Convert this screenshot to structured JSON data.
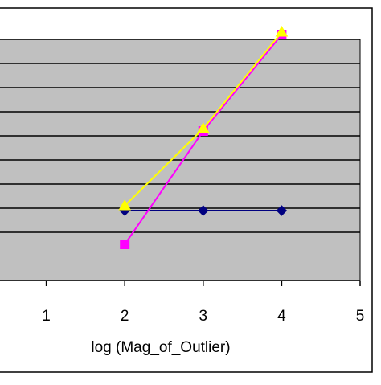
{
  "chart_data": {
    "type": "line",
    "title": "",
    "xlabel": "log (Mag_of_Outlier)",
    "ylabel": "",
    "xlim": [
      0,
      5
    ],
    "ylim": [
      0,
      6
    ],
    "x_ticks": [
      1,
      2,
      3,
      4,
      5
    ],
    "x_tick_labels": [
      "1",
      "2",
      "3",
      "4",
      "5"
    ],
    "y_gridlines": [
      1,
      1.5,
      2,
      2.5,
      3,
      3.5,
      4,
      4.5,
      5
    ],
    "grid": true,
    "legend": "none visible",
    "plot_background": "#c0c0c0",
    "series": [
      {
        "x": [
          2,
          3,
          4
        ],
        "y": [
          1.45,
          1.45,
          1.45
        ],
        "color": "#000080",
        "marker": "diamond"
      },
      {
        "x": [
          2,
          3,
          4
        ],
        "y": [
          0.75,
          3.1,
          5.1
        ],
        "color": "#ff00ff",
        "marker": "square"
      },
      {
        "x": [
          2,
          3,
          4
        ],
        "y": [
          1.55,
          3.15,
          5.15
        ],
        "color": "#ffff00",
        "marker": "triangle"
      }
    ]
  }
}
